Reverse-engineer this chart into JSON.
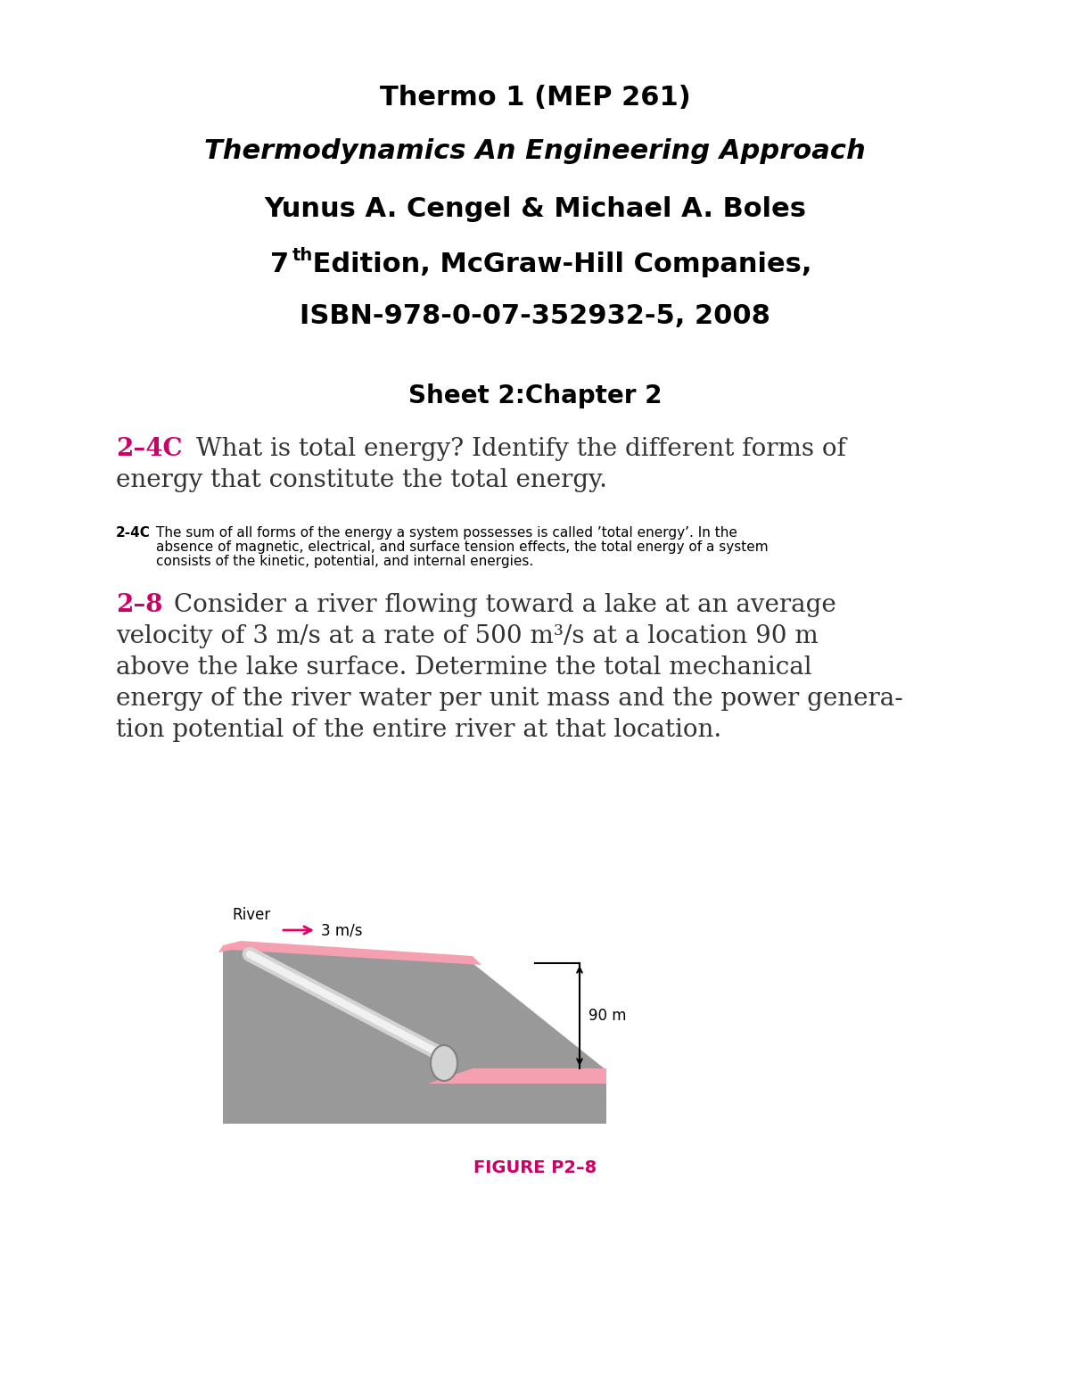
{
  "title1": "Thermo 1 (MEP 261)",
  "title2": "Thermodynamics An Engineering Approach",
  "title3": "Yunus A. Cengel & Michael A. Boles",
  "title4_main": "7",
  "title4_sup": "th",
  "title4_rest": " Edition, McGraw-Hill Companies,",
  "title5": "ISBN-978-0-07-352932-5, 2008",
  "sheet_title": "Sheet 2:Chapter 2",
  "q1_num": "2–4C",
  "q1_text": "What is total energy? Identify the different forms of\nenergy that constitute the total energy.",
  "q1_answer_bold": "2-4C",
  "q1_answer_text": " The sum of all forms of the energy a system possesses is called ’total energy’. In the\nabsence of magnetic, electrical, and surface tension effects, the total energy of a system\nconsists of the kinetic, potential, and internal energies.",
  "q2_num": "2–8",
  "q2_text": "Consider a river flowing toward a lake at an average\nvelocity of 3 m/s at a rate of 500 m³/s at a location 90 m\nabove the lake surface. Determine the total mechanical\nenergy of the river water per unit mass and the power genera-\ntion potential of the entire river at that location.",
  "fig_caption": "FIGURE P2–8",
  "pink_color": "#F4A0B0",
  "gray_color": "#999999",
  "dark_gray": "#666666",
  "magenta_color": "#E0006A",
  "question_color": "#CC0066",
  "body_text_color": "#333333",
  "background_color": "#FFFFFF"
}
